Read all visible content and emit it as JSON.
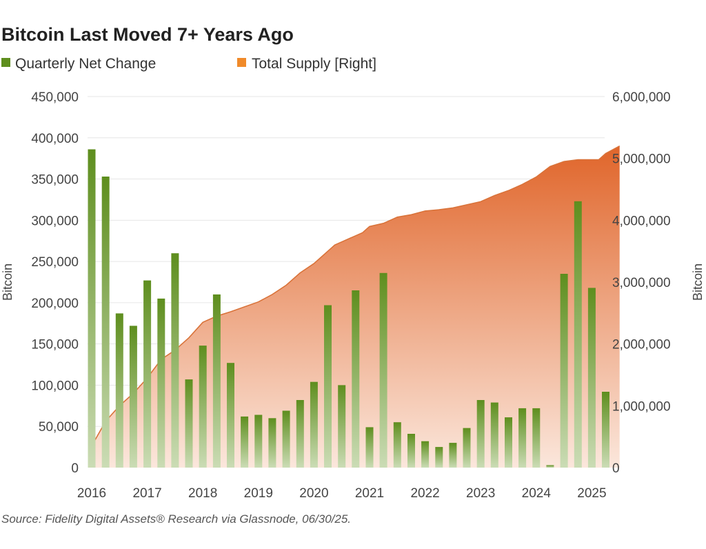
{
  "title": "Bitcoin Last Moved 7+ Years Ago",
  "legend": {
    "bars_label": "Quarterly Net Change",
    "area_label": "Total Supply [Right]"
  },
  "source": "Source: Fidelity Digital Assets® Research via Glassnode, 06/30/25.",
  "colors": {
    "bar_dark": "#5e8e1e",
    "bar_light": "#cbdcb5",
    "area_dark": "#e0652a",
    "area_light": "#fbe7dc",
    "line": "#d9733a",
    "legend_green": "#5e8e1e",
    "legend_orange": "#f08a2a",
    "grid": "#e6e6e6"
  },
  "chart_data": {
    "type": "bar",
    "title": "Bitcoin Last Moved 7+ Years Ago",
    "ylabel": "Bitcoin",
    "y2label": "Bitcoin",
    "ylim": [
      0,
      450000
    ],
    "y2lim": [
      0,
      6000000
    ],
    "yticks": [
      "0",
      "50,000",
      "100,000",
      "150,000",
      "200,000",
      "250,000",
      "300,000",
      "350,000",
      "400,000",
      "450,000"
    ],
    "y2ticks": [
      "0",
      "1,000,000",
      "2,000,000",
      "3,000,000",
      "4,000,000",
      "5,000,000",
      "6,000,000"
    ],
    "xlabels": [
      "2016",
      "2017",
      "2018",
      "2019",
      "2020",
      "2021",
      "2022",
      "2023",
      "2024",
      "2025"
    ],
    "grid": true,
    "legend_position": "top-left",
    "categories": [
      "2016Q1",
      "2016Q2",
      "2016Q3",
      "2016Q4",
      "2017Q1",
      "2017Q2",
      "2017Q3",
      "2017Q4",
      "2018Q1",
      "2018Q2",
      "2018Q3",
      "2018Q4",
      "2019Q1",
      "2019Q2",
      "2019Q3",
      "2019Q4",
      "2020Q1",
      "2020Q2",
      "2020Q3",
      "2020Q4",
      "2021Q1",
      "2021Q2",
      "2021Q3",
      "2021Q4",
      "2022Q1",
      "2022Q2",
      "2022Q3",
      "2022Q4",
      "2023Q1",
      "2023Q2",
      "2023Q3",
      "2023Q4",
      "2024Q1",
      "2024Q2",
      "2024Q3",
      "2024Q4",
      "2025Q1",
      "2025Q2"
    ],
    "series": [
      {
        "name": "Quarterly Net Change",
        "type": "bar",
        "axis": "left",
        "values": [
          386000,
          353000,
          187000,
          172000,
          227000,
          205000,
          260000,
          107000,
          148000,
          210000,
          127000,
          62000,
          64000,
          60000,
          69000,
          82000,
          104000,
          197000,
          100000,
          215000,
          49000,
          236000,
          55000,
          41000,
          32000,
          25000,
          30000,
          48000,
          82000,
          79000,
          61000,
          72000,
          72000,
          3000,
          235000,
          323000,
          218000,
          92000
        ]
      },
      {
        "name": "Total Supply [Right]",
        "type": "area",
        "axis": "right",
        "x": [
          0,
          0.5,
          1,
          2,
          3,
          4,
          4.5,
          5,
          6,
          7,
          8,
          9,
          10,
          11,
          12,
          13,
          14,
          15,
          16,
          16.5,
          17,
          17.5,
          18,
          19,
          19.5,
          20,
          21,
          21.5,
          22,
          23,
          24,
          25,
          26,
          27,
          28,
          29,
          30,
          31,
          32,
          33,
          34,
          35,
          36,
          36.5,
          37,
          38
        ],
        "values": [
          350000,
          550000,
          750000,
          1000000,
          1200000,
          1450000,
          1600000,
          1750000,
          1900000,
          2100000,
          2350000,
          2450000,
          2520000,
          2600000,
          2680000,
          2800000,
          2950000,
          3150000,
          3300000,
          3400000,
          3500000,
          3600000,
          3650000,
          3750000,
          3800000,
          3900000,
          3950000,
          4000000,
          4050000,
          4090000,
          4150000,
          4170000,
          4200000,
          4250000,
          4300000,
          4400000,
          4480000,
          4580000,
          4700000,
          4870000,
          4950000,
          4980000,
          4980000,
          4980000,
          5080000,
          5200000
        ]
      }
    ]
  }
}
